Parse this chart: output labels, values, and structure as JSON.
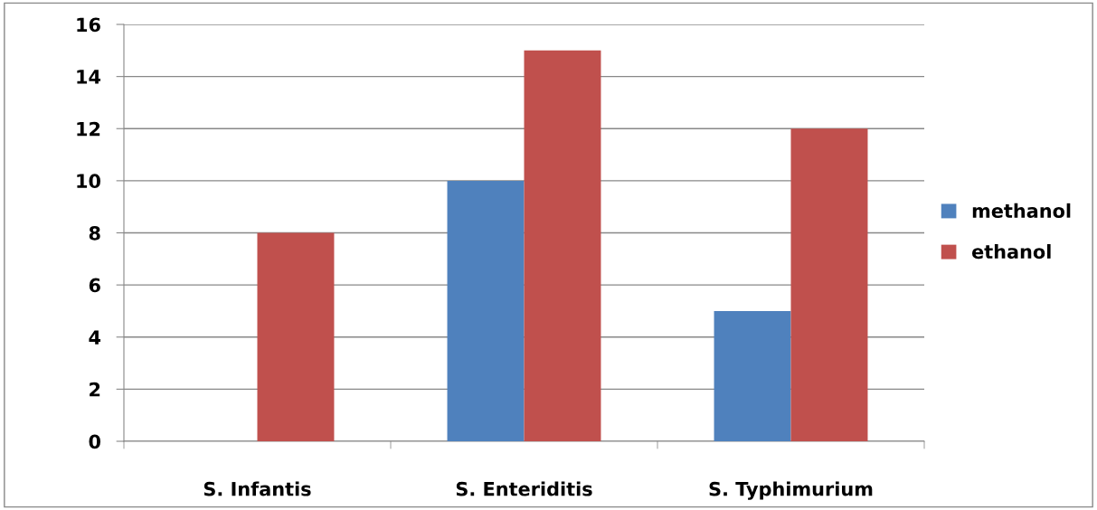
{
  "chart_data": {
    "type": "bar",
    "categories": [
      "S. Infantis",
      "S. Enteriditis",
      "S. Typhimurium"
    ],
    "series": [
      {
        "name": "methanol",
        "color": "#4f81bd",
        "values": [
          0,
          10,
          5
        ]
      },
      {
        "name": "ethanol",
        "color": "#c0504d",
        "values": [
          8,
          15,
          12
        ]
      }
    ],
    "ylim": [
      0,
      16
    ],
    "yticks": [
      0,
      2,
      4,
      6,
      8,
      10,
      12,
      14,
      16
    ],
    "grid": "y",
    "legend": "right"
  }
}
